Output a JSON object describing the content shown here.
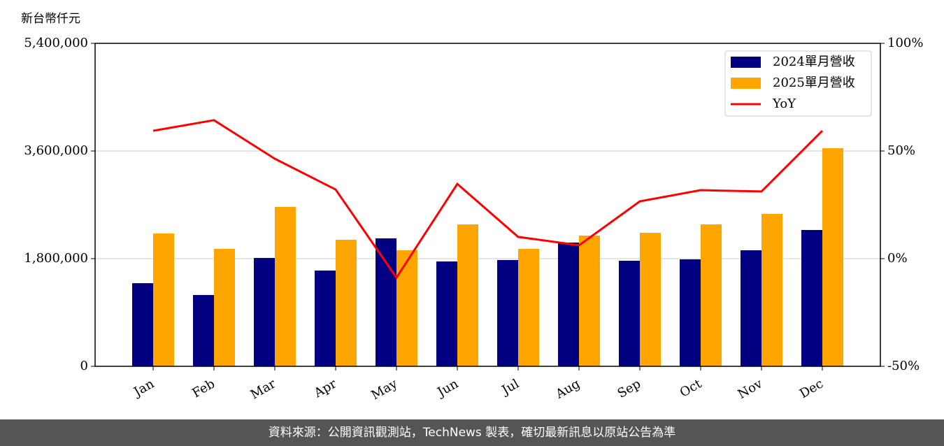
{
  "chart_data": {
    "type": "bar",
    "ylabel": "新台幣仟元",
    "footer": "資料來源：公開資訊觀測站，TechNews 製表，確切最新訊息以原站公告為準",
    "categories": [
      "Jan",
      "Feb",
      "Mar",
      "Apr",
      "May",
      "Jun",
      "Jul",
      "Aug",
      "Sep",
      "Oct",
      "Nov",
      "Dec"
    ],
    "series": [
      {
        "name": "2024單月營收",
        "color": "#000080",
        "values": [
          1390000,
          1192000,
          1812000,
          1601000,
          2139000,
          1753000,
          1777000,
          2069000,
          1765000,
          1788000,
          1940000,
          2279000
        ]
      },
      {
        "name": "2025單月營收",
        "color": "#ffa500",
        "values": [
          2221000,
          1964000,
          2665000,
          2116000,
          1940000,
          2373000,
          1964000,
          2186000,
          2232000,
          2373000,
          2548000,
          3647000
        ]
      },
      {
        "name": "YoY",
        "type": "line",
        "axis": "y2",
        "color": "#ff0000",
        "values": [
          59.4,
          64.3,
          46.4,
          32.1,
          -8.8,
          34.7,
          10.1,
          6.2,
          26.6,
          31.8,
          31.2,
          59.4
        ]
      }
    ],
    "ylim": [
      0,
      5400000
    ],
    "yticks": [
      0,
      {
        "value": 1800000,
        "label": "1,800,000"
      },
      {
        "value": 3600000,
        "label": "3,600,000"
      },
      {
        "value": 5400000,
        "label": "5,400,000"
      }
    ],
    "y2lim": [
      -50,
      100
    ],
    "y2ticks": [
      {
        "value": -50,
        "label": "-50%"
      },
      {
        "value": 0,
        "label": "0%"
      },
      {
        "value": 50,
        "label": "50%"
      },
      {
        "value": 100,
        "label": "100%"
      }
    ],
    "grid": true,
    "legend": "upper right"
  }
}
